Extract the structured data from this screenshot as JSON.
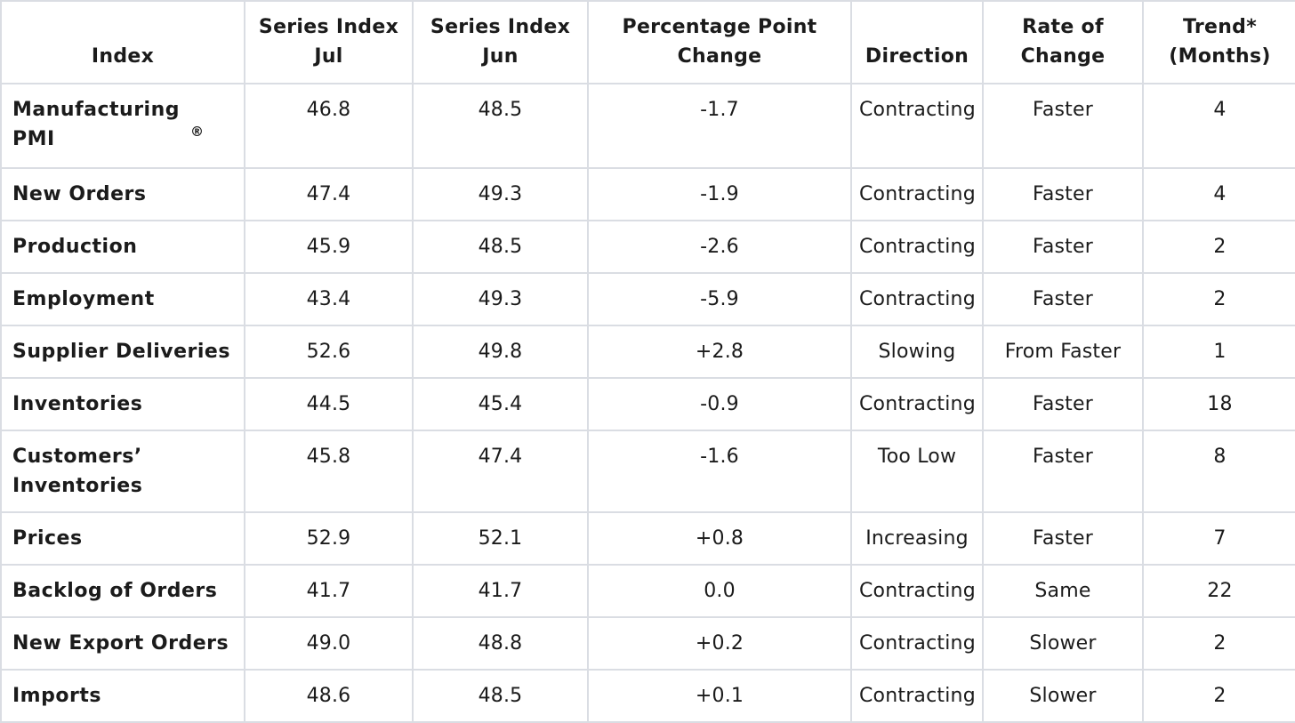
{
  "headers": [
    "Index",
    "Series Index Jul",
    "Series Index Jun",
    "Percentage Point Change",
    "Direction",
    "Rate of Change",
    "Trend* (Months)"
  ],
  "rows": [
    {
      "index": "Manufacturing PMI",
      "sup": "®",
      "jul": "46.8",
      "jun": "48.5",
      "change": "-1.7",
      "direction": "Contracting",
      "rate": "Faster",
      "trend": "4"
    },
    {
      "index": "New Orders",
      "jul": "47.4",
      "jun": "49.3",
      "change": "-1.9",
      "direction": "Contracting",
      "rate": "Faster",
      "trend": "4"
    },
    {
      "index": "Production",
      "jul": "45.9",
      "jun": "48.5",
      "change": "-2.6",
      "direction": "Contracting",
      "rate": "Faster",
      "trend": "2"
    },
    {
      "index": "Employment",
      "jul": "43.4",
      "jun": "49.3",
      "change": "-5.9",
      "direction": "Contracting",
      "rate": "Faster",
      "trend": "2"
    },
    {
      "index": "Supplier Deliveries",
      "jul": "52.6",
      "jun": "49.8",
      "change": "+2.8",
      "direction": "Slowing",
      "rate": "From Faster",
      "trend": "1"
    },
    {
      "index": "Inventories",
      "jul": "44.5",
      "jun": "45.4",
      "change": "-0.9",
      "direction": "Contracting",
      "rate": "Faster",
      "trend": "18"
    },
    {
      "index": "Customers’ Inventories",
      "jul": "45.8",
      "jun": "47.4",
      "change": "-1.6",
      "direction": "Too Low",
      "rate": "Faster",
      "trend": "8"
    },
    {
      "index": "Prices",
      "jul": "52.9",
      "jun": "52.1",
      "change": "+0.8",
      "direction": "Increasing",
      "rate": "Faster",
      "trend": "7"
    },
    {
      "index": "Backlog of Orders",
      "jul": "41.7",
      "jun": "41.7",
      "change": "0.0",
      "direction": "Contracting",
      "rate": "Same",
      "trend": "22"
    },
    {
      "index": "New Export Orders",
      "jul": "49.0",
      "jun": "48.8",
      "change": "+0.2",
      "direction": "Contracting",
      "rate": "Slower",
      "trend": "2"
    },
    {
      "index": "Imports",
      "jul": "48.6",
      "jun": "48.5",
      "change": "+0.1",
      "direction": "Contracting",
      "rate": "Slower",
      "trend": "2"
    }
  ],
  "colors": {
    "border": "#dadde3",
    "text": "#1b1b1b",
    "background": "#ffffff"
  }
}
